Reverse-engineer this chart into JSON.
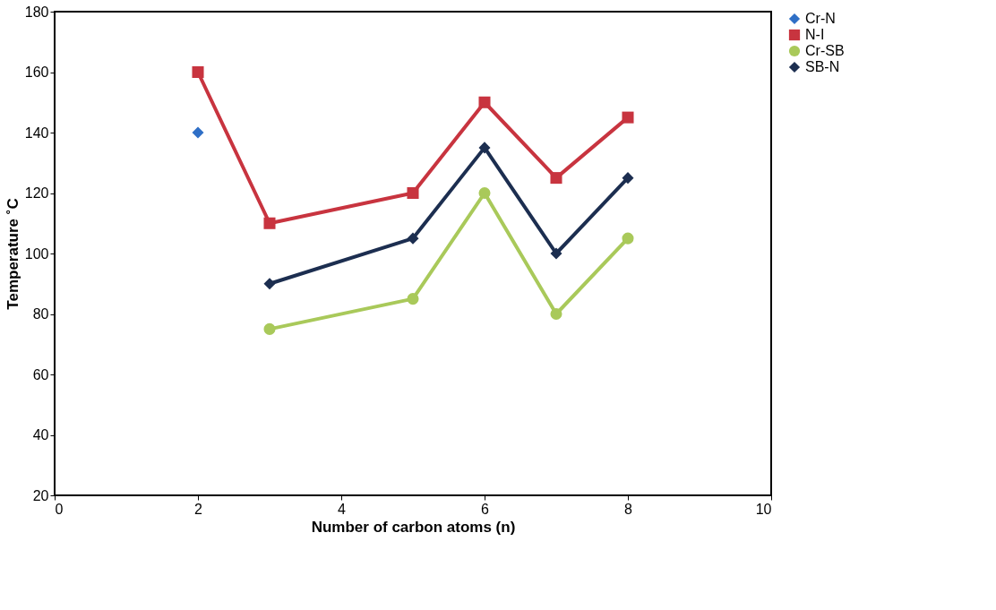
{
  "chart_data": {
    "type": "line",
    "xlabel": "Number of carbon atoms (n)",
    "ylabel": "Temperature ˚C",
    "xlim": [
      0,
      10
    ],
    "xticks": [
      0,
      2,
      4,
      6,
      8,
      10
    ],
    "ylim": [
      20,
      180
    ],
    "yticks": [
      20,
      40,
      60,
      80,
      100,
      120,
      140,
      160,
      180
    ],
    "grid": false,
    "legend": "right",
    "line_style": "solid",
    "series": [
      {
        "name": "Cr-N",
        "color": "#2f6fc6",
        "marker": "diamond",
        "x": [
          2
        ],
        "values": [
          140
        ]
      },
      {
        "name": "N-I",
        "color": "#c8343f",
        "marker": "square",
        "x": [
          2,
          3,
          5,
          6,
          7,
          8
        ],
        "values": [
          160,
          110,
          120,
          150,
          125,
          145
        ]
      },
      {
        "name": "Cr-SB",
        "color": "#a9c95a",
        "marker": "circle",
        "x": [
          3,
          5,
          6,
          7,
          8
        ],
        "values": [
          75,
          85,
          120,
          80,
          105
        ]
      },
      {
        "name": "SB-N",
        "color": "#1c2e50",
        "marker": "diamond",
        "x": [
          3,
          5,
          6,
          7,
          8
        ],
        "values": [
          90,
          105,
          135,
          100,
          125
        ]
      }
    ]
  }
}
